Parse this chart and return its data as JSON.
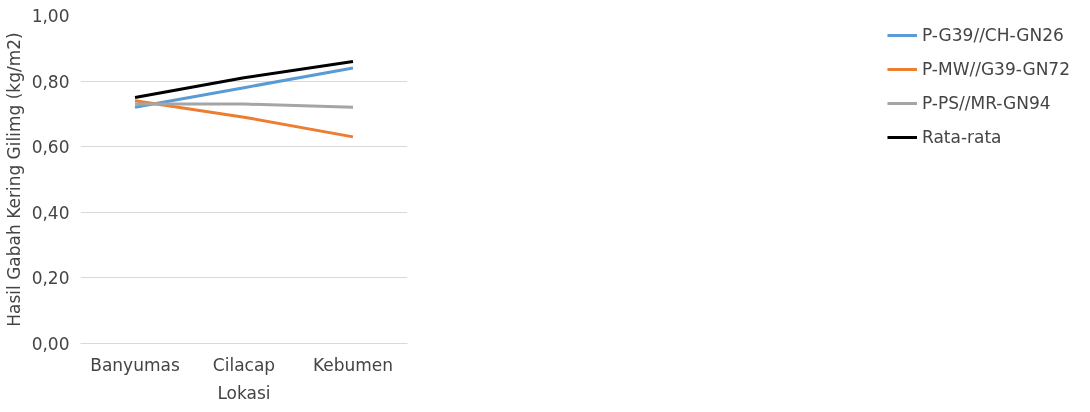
{
  "chart_data": {
    "type": "line",
    "xlabel": "Lokasi",
    "ylabel": "Hasil Gabah Kering Gilimg (kg/m2)",
    "categories": [
      "Banyumas",
      "Cilacap",
      "Kebumen"
    ],
    "series": [
      {
        "name": "P-G39//CH-GN26",
        "color": "#5b9bd5",
        "values": [
          0.72,
          0.78,
          0.84
        ]
      },
      {
        "name": "P-MW//G39-GN72",
        "color": "#ed7d31",
        "values": [
          0.74,
          0.69,
          0.63
        ]
      },
      {
        "name": "P-PS//MR-GN94",
        "color": "#a5a5a5",
        "values": [
          0.73,
          0.73,
          0.72
        ]
      },
      {
        "name": "Rata-rata",
        "color": "#000000",
        "values": [
          0.75,
          0.81,
          0.86
        ]
      }
    ],
    "ylim": [
      0,
      1.0
    ],
    "yticks": [
      {
        "value": 0,
        "label": "0,00"
      },
      {
        "value": 0.2,
        "label": "0,20"
      },
      {
        "value": 0.4,
        "label": "0,40"
      },
      {
        "value": 0.6,
        "label": "0,60"
      },
      {
        "value": 0.8,
        "label": "0,80"
      },
      {
        "value": 1.0,
        "label": "1,00"
      }
    ],
    "grid": "y",
    "legend": "right",
    "marker": "none",
    "line_style": "solid"
  }
}
